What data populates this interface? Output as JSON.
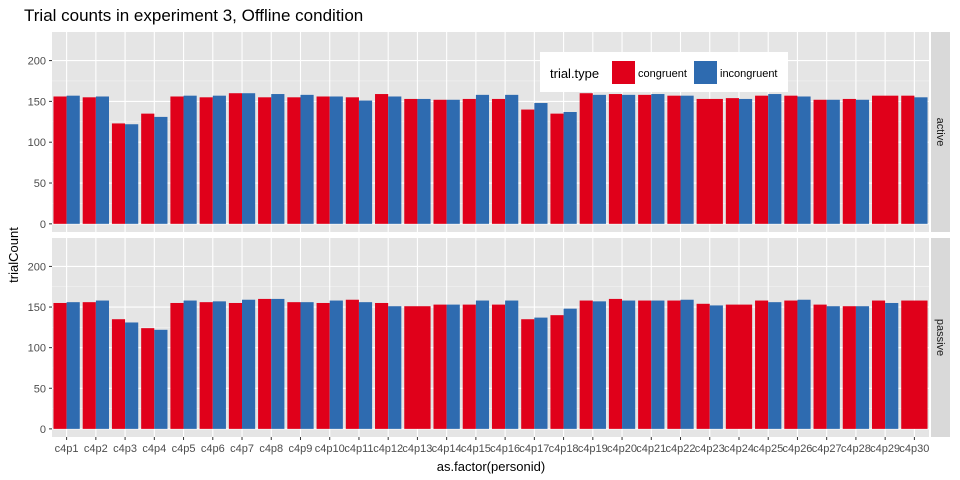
{
  "chart_data": {
    "type": "bar",
    "title": "Trial counts in experiment 3, Offline condition",
    "xlabel": "as.factor(personid)",
    "ylabel": "trialCount",
    "ylim": [
      -10,
      235
    ],
    "yticks": [
      0,
      50,
      100,
      150,
      200
    ],
    "grid": true,
    "legend": {
      "title": "trial.type",
      "position": "top-right",
      "entries": [
        "congruent",
        "incongruent"
      ]
    },
    "colors": {
      "congruent": "#e0001a",
      "incongruent": "#2e6bb0"
    },
    "categories": [
      "c4p1",
      "c4p2",
      "c4p3",
      "c4p4",
      "c4p5",
      "c4p6",
      "c4p7",
      "c4p8",
      "c4p9",
      "c4p10",
      "c4p11",
      "c4p12",
      "c4p13",
      "c4p14",
      "c4p15",
      "c4p16",
      "c4p17",
      "c4p18",
      "c4p19",
      "c4p20",
      "c4p21",
      "c4p22",
      "c4p23",
      "c4p24",
      "c4p25",
      "c4p26",
      "c4p27",
      "c4p28",
      "c4p29",
      "c4p30"
    ],
    "panels": [
      {
        "label": "active",
        "series": [
          {
            "name": "congruent",
            "values": [
              156,
              155,
              123,
              135,
              156,
              155,
              160,
              155,
              155,
              156,
              155,
              159,
              153,
              152,
              153,
              153,
              140,
              135,
              160,
              159,
              158,
              157,
              153,
              154,
              157,
              157,
              152,
              153,
              157,
              157
            ]
          },
          {
            "name": "incongruent",
            "values": [
              157,
              156,
              122,
              131,
              157,
              157,
              160,
              159,
              158,
              156,
              151,
              156,
              153,
              152,
              158,
              158,
              148,
              137,
              158,
              158,
              159,
              157,
              null,
              153,
              159,
              156,
              152,
              152,
              null,
              155
            ]
          }
        ]
      },
      {
        "label": "passive",
        "series": [
          {
            "name": "congruent",
            "values": [
              155,
              156,
              135,
              124,
              155,
              156,
              155,
              160,
              156,
              155,
              159,
              155,
              151,
              153,
              153,
              153,
              135,
              140,
              158,
              160,
              158,
              158,
              154,
              153,
              158,
              158,
              153,
              151,
              158,
              158
            ]
          },
          {
            "name": "incongruent",
            "values": [
              156,
              158,
              131,
              122,
              158,
              157,
              159,
              160,
              156,
              158,
              156,
              151,
              null,
              153,
              158,
              158,
              137,
              148,
              157,
              158,
              158,
              159,
              152,
              null,
              156,
              159,
              151,
              151,
              155,
              null
            ]
          }
        ]
      }
    ]
  }
}
